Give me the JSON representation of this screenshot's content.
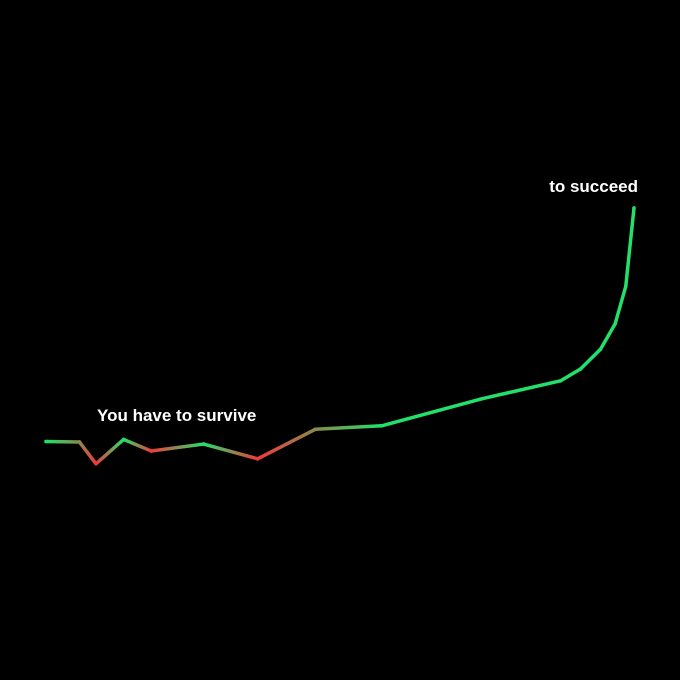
{
  "chart_data": {
    "type": "line",
    "title": "",
    "xlabel": "",
    "ylabel": "",
    "axes_visible": false,
    "grid": false,
    "background": "#000000",
    "colors": {
      "rising": "#22e06a",
      "falling": "#f03a3a"
    },
    "x": [
      0,
      5.7,
      8.5,
      13.2,
      17.9,
      26.8,
      36.0,
      45.8,
      57.1,
      74.1,
      87.5,
      90.9,
      94.3,
      96.8,
      98.6,
      100
    ],
    "y": [
      19.5,
      19.3,
      11.8,
      20.2,
      16.2,
      18.6,
      13.5,
      23.7,
      24.9,
      34.2,
      40.4,
      44.5,
      51.3,
      60.1,
      73.0,
      100
    ],
    "annotations": [
      {
        "text": "You have to survive"
      },
      {
        "text": "to succeed"
      }
    ]
  }
}
